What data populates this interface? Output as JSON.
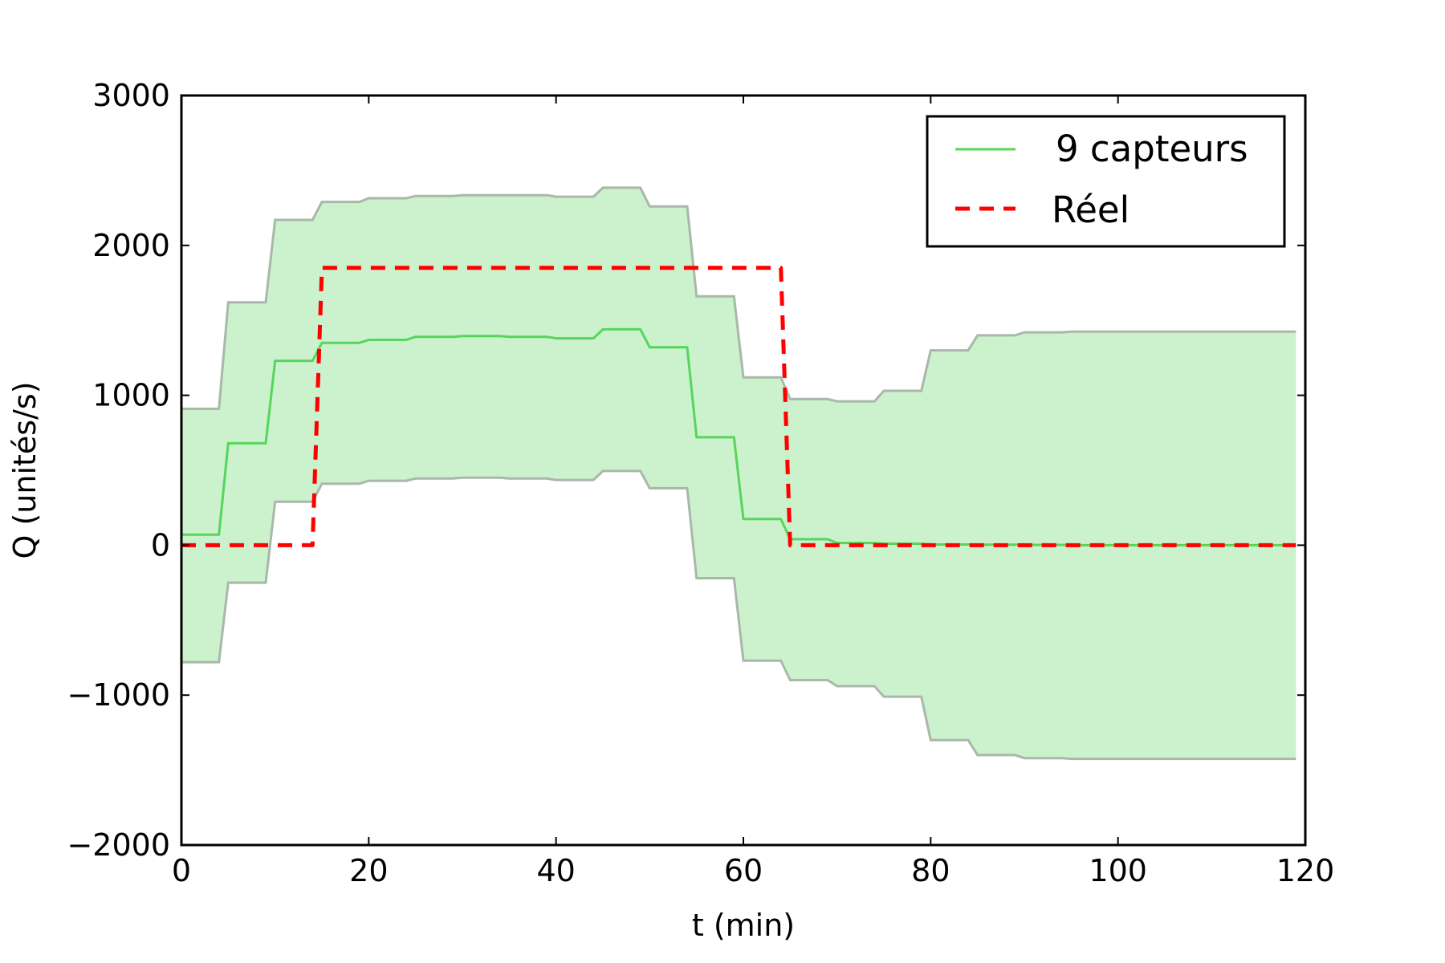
{
  "chart_data": {
    "type": "line",
    "title": "",
    "xlabel": "t (min)",
    "ylabel": "Q (unités/s)",
    "xlim": [
      0,
      120
    ],
    "ylim": [
      -2000,
      3000
    ],
    "xticks": [
      0,
      20,
      40,
      60,
      80,
      100,
      120
    ],
    "yticks": [
      -2000,
      -1000,
      0,
      1000,
      2000,
      3000
    ],
    "xtick_labels": [
      "0",
      "20",
      "40",
      "60",
      "80",
      "100",
      "120"
    ],
    "ytick_labels": [
      "−2000",
      "−1000",
      "0",
      "1000",
      "2000",
      "3000"
    ],
    "grid": false,
    "legend_position": "top-right",
    "series": [
      {
        "name": "9 capteurs",
        "style": "solid",
        "color": "#55d65a",
        "x": [
          0,
          4,
          5,
          9,
          10,
          14,
          15,
          19,
          20,
          24,
          25,
          29,
          30,
          34,
          35,
          39,
          40,
          44,
          45,
          49,
          50,
          54,
          55,
          59,
          60,
          64,
          65,
          69,
          70,
          74,
          75,
          79,
          80,
          84,
          85,
          89,
          90,
          94,
          95,
          119
        ],
        "values": [
          70,
          70,
          680,
          680,
          1230,
          1230,
          1350,
          1350,
          1370,
          1370,
          1390,
          1390,
          1395,
          1395,
          1390,
          1390,
          1380,
          1380,
          1440,
          1440,
          1320,
          1320,
          720,
          720,
          175,
          175,
          40,
          40,
          15,
          15,
          10,
          10,
          5,
          5,
          3,
          3,
          2,
          2,
          0,
          0
        ]
      },
      {
        "name": "Réel",
        "style": "dashed",
        "color": "#ff0000",
        "x": [
          0,
          14,
          15,
          64,
          65,
          119
        ],
        "values": [
          0,
          0,
          1850,
          1850,
          0,
          0
        ]
      }
    ],
    "band": {
      "fill_color": "#ccf1cd",
      "edge_color": "#a9b8a9",
      "x": [
        0,
        4,
        5,
        9,
        10,
        14,
        15,
        19,
        20,
        24,
        25,
        29,
        30,
        34,
        35,
        39,
        40,
        44,
        45,
        49,
        50,
        54,
        55,
        59,
        60,
        64,
        65,
        69,
        70,
        74,
        75,
        79,
        80,
        84,
        85,
        89,
        90,
        94,
        95,
        119
      ],
      "upper": [
        910,
        910,
        1620,
        1620,
        2170,
        2170,
        2290,
        2290,
        2315,
        2315,
        2330,
        2330,
        2335,
        2335,
        2335,
        2335,
        2325,
        2325,
        2385,
        2385,
        2260,
        2260,
        1660,
        1660,
        1120,
        1120,
        975,
        975,
        960,
        960,
        1030,
        1030,
        1300,
        1300,
        1400,
        1400,
        1420,
        1420,
        1425,
        1425
      ],
      "lower": [
        -780,
        -780,
        -250,
        -250,
        290,
        290,
        410,
        410,
        430,
        430,
        445,
        445,
        450,
        450,
        445,
        445,
        435,
        435,
        495,
        495,
        380,
        380,
        -220,
        -220,
        -770,
        -770,
        -900,
        -900,
        -940,
        -940,
        -1010,
        -1010,
        -1300,
        -1300,
        -1400,
        -1400,
        -1420,
        -1420,
        -1425,
        -1425
      ]
    }
  }
}
